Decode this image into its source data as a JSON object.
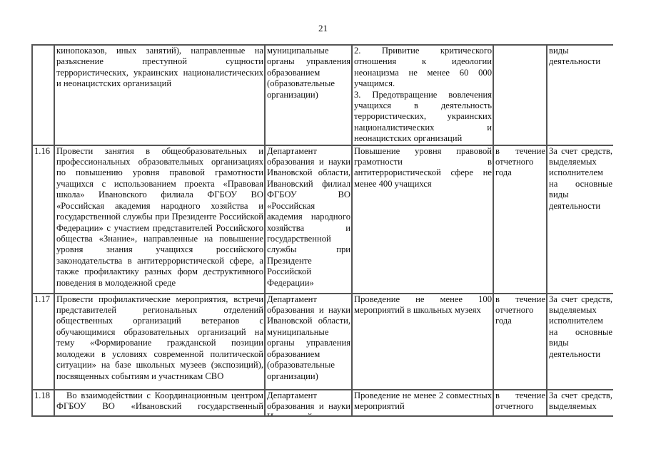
{
  "page_number": "21",
  "rows": [
    {
      "num": "",
      "activity": "кинопоказов, иных занятий), направленные на разъяснение преступной сущности террористических, украинских националистических и неонацистских организаций",
      "executor": "муниципальные органы управления образованием (образовательные организации)",
      "result": [
        "2. Привитие критического отношения к идеологии неонацизма не менее 60 000 учащимся.",
        "3. Предотвращение вовлечения учащихся в деятельность террористических, украинских националистических и неонацистских организаций"
      ],
      "term": "",
      "funding": "виды деятельности"
    },
    {
      "num": "1.16",
      "activity": "Провести занятия в общеобразовательных и профессиональных образовательных организациях по повышению уровня правовой грамотности учащихся с использованием проекта «Правовая школа» Ивановского филиала ФГБОУ ВО «Российская академия народного хозяйства и государственной службы при Президенте Российской Федерации» с участием представителей Российского общества «Знание», направленные на повышение уровня знания учащихся российского законодательства в антитеррористической сфере, а также профилактику разных форм деструктивного поведения в молодежной среде",
      "executor": "Департамент образования и науки Ивановской области, Ивановский филиал ФГБОУ ВО «Российская академия народного хозяйства и государственной службы при Президенте Российской Федерации»",
      "result": [
        "Повышение уровня правовой грамотности в антитеррористической сфере не менее 400 учащихся"
      ],
      "term": "в течение отчетного года",
      "funding": "За счет средств, выделяемых исполнителем на основные виды деятельности"
    },
    {
      "num": "1.17",
      "activity": "Провести профилактические мероприятия, встречи представителей региональных отделений общественных организаций ветеранов с обучающимися образовательных организаций на тему «Формирование гражданской позиции молодежи в условиях современной политической ситуации» на базе школьных музеев (экспозиций), посвященных событиям и участникам СВО",
      "executor": "Департамент образования и науки Ивановской области, муниципальные органы управления образованием (образовательные организации)",
      "result": [
        "Проведение не менее 100 мероприятий в школьных музеях"
      ],
      "term": "в течение отчетного года",
      "funding": "За счет средств, выделяемых исполнителем на основные виды деятельности"
    },
    {
      "num": "1.18",
      "activity": "Во взаимодействии с Координационным центром ФГБОУ ВО «Ивановский государственный университет» провести совместные",
      "executor": "Департамент образования и науки Ивановской",
      "result": [
        "Проведение не менее 2 совместных мероприятий"
      ],
      "term": "в течение отчетного года",
      "funding": "За счет средств, выделяемых исполнителем"
    }
  ]
}
